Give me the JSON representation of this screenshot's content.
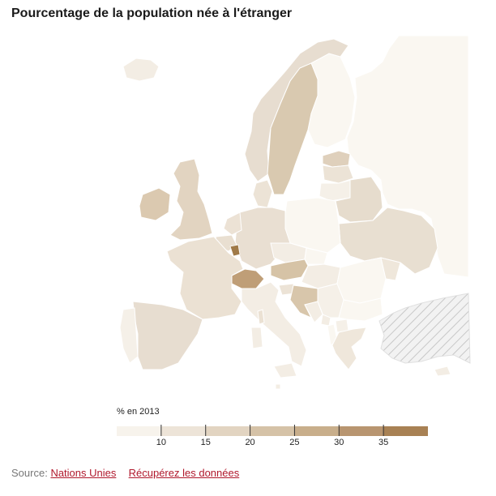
{
  "title": "Pourcentage de la population née à l'étranger",
  "legend": {
    "title": "% en 2013",
    "ticks": [
      "10",
      "15",
      "20",
      "25",
      "30",
      "35"
    ],
    "colors": [
      "#f7f3ec",
      "#ede4d8",
      "#e2d4c1",
      "#d5c2a7",
      "#c8ae8b",
      "#b89570",
      "#a88154"
    ]
  },
  "source": {
    "prefix": "Source:",
    "link1": "Nations Unies",
    "link2": "Récupérez les données"
  }
}
